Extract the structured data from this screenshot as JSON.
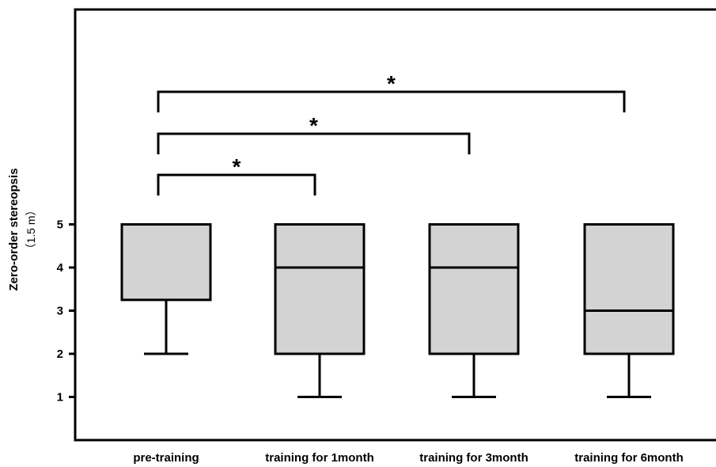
{
  "chart_data": {
    "type": "box",
    "xlabel": "",
    "ylabel": "Zero-order stereopsis",
    "ylabel_unit": "（1.5 m）",
    "ylim": [
      0,
      10
    ],
    "yticks": [
      1,
      2,
      3,
      4,
      5
    ],
    "grid": false,
    "box_fill": "#d3d3d3",
    "line_color": "#000000",
    "categories": [
      "pre-training",
      "training for 1month",
      "training for 3month",
      "training for 6month"
    ],
    "boxes": [
      {
        "category": "pre-training",
        "min": 2,
        "q1": 3.25,
        "median": 5,
        "q3": 5,
        "max": 5
      },
      {
        "category": "training for 1month",
        "min": 1,
        "q1": 2,
        "median": 4,
        "q3": 5,
        "max": 5
      },
      {
        "category": "training for 3month",
        "min": 1,
        "q1": 2,
        "median": 4,
        "q3": 5,
        "max": 5
      },
      {
        "category": "training for 6month",
        "min": 1,
        "q1": 2,
        "median": 3,
        "q3": 5,
        "max": 5
      }
    ],
    "significance": [
      {
        "from": 0,
        "to": 1,
        "label": "*"
      },
      {
        "from": 0,
        "to": 2,
        "label": "*"
      },
      {
        "from": 0,
        "to": 3,
        "label": "*"
      }
    ]
  }
}
